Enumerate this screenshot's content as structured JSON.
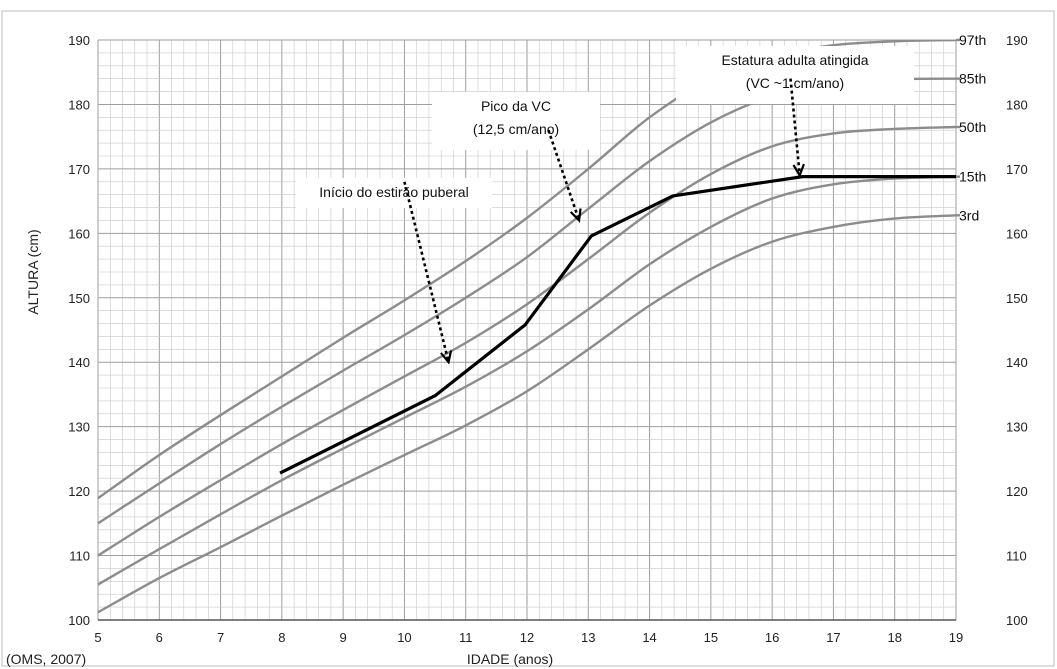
{
  "chart_data": {
    "type": "line",
    "xlabel": "IDADE (anos)",
    "ylabel": "ALTURA (cm)",
    "xlim": [
      5,
      19
    ],
    "ylim": [
      100,
      190
    ],
    "x_ticks": [
      5,
      6,
      7,
      8,
      9,
      10,
      11,
      12,
      13,
      14,
      15,
      16,
      17,
      18,
      19
    ],
    "y_ticks": [
      100,
      110,
      120,
      130,
      140,
      150,
      160,
      170,
      180,
      190
    ],
    "grid": true,
    "source": "(OMS, 2007)",
    "percentile_curves": [
      {
        "name": "97th",
        "x": [
          5,
          6,
          7,
          8,
          9,
          10,
          11,
          12,
          13,
          14,
          15,
          16,
          17,
          18,
          19
        ],
        "y": [
          118.9,
          125.6,
          131.8,
          137.8,
          143.8,
          149.6,
          155.7,
          162.4,
          170.0,
          178.0,
          184.0,
          187.5,
          189.2,
          189.8,
          190.0
        ]
      },
      {
        "name": "85th",
        "x": [
          5,
          6,
          7,
          8,
          9,
          10,
          11,
          12,
          13,
          14,
          15,
          16,
          17,
          18,
          19
        ],
        "y": [
          115.0,
          121.2,
          127.3,
          133.1,
          138.7,
          144.2,
          150.0,
          156.3,
          163.8,
          171.2,
          177.2,
          181.3,
          183.3,
          183.9,
          184.0
        ]
      },
      {
        "name": "50th",
        "x": [
          5,
          6,
          7,
          8,
          9,
          10,
          11,
          12,
          13,
          14,
          15,
          16,
          17,
          18,
          19
        ],
        "y": [
          110.0,
          116.0,
          121.7,
          127.3,
          132.6,
          137.8,
          143.0,
          149.0,
          156.0,
          163.2,
          169.2,
          173.5,
          175.5,
          176.2,
          176.5
        ]
      },
      {
        "name": "15th",
        "x": [
          5,
          6,
          7,
          8,
          9,
          10,
          11,
          12,
          13,
          14,
          15,
          16,
          17,
          18,
          19
        ],
        "y": [
          105.5,
          111.0,
          116.4,
          121.7,
          126.6,
          131.4,
          136.2,
          141.7,
          148.2,
          155.2,
          161.0,
          165.4,
          167.6,
          168.5,
          168.8
        ]
      },
      {
        "name": "3rd",
        "x": [
          5,
          6,
          7,
          8,
          9,
          10,
          11,
          12,
          13,
          14,
          15,
          16,
          17,
          18,
          19
        ],
        "y": [
          101.2,
          106.5,
          111.3,
          116.2,
          121.0,
          125.6,
          130.2,
          135.5,
          142.0,
          148.8,
          154.5,
          158.7,
          161.0,
          162.3,
          162.8
        ]
      }
    ],
    "patient_series": {
      "x": [
        7.97,
        10.5,
        11.97,
        13.05,
        14.38,
        16.5,
        19.0
      ],
      "y": [
        122.8,
        134.8,
        145.8,
        159.6,
        165.8,
        168.8,
        168.8
      ]
    },
    "annotations": [
      {
        "id": "start",
        "lines": [
          "Início do estirão puberal"
        ],
        "arrow_from": [
          10.0,
          168
        ],
        "arrow_to": [
          10.72,
          140
        ]
      },
      {
        "id": "peak",
        "lines": [
          "Pico da VC",
          "(12,5 cm/ano)"
        ],
        "arrow_from": [
          12.35,
          176
        ],
        "arrow_to": [
          12.85,
          162
        ]
      },
      {
        "id": "adult",
        "lines": [
          "Estatura adulta atingida",
          "(VC ~1 cm/ano)"
        ],
        "arrow_from": [
          16.3,
          184
        ],
        "arrow_to": [
          16.45,
          169
        ]
      }
    ]
  },
  "colors": {
    "percentile": "#8c8c8c",
    "patient": "#000000",
    "grid": "#c8c8c8",
    "axis": "#555555"
  }
}
